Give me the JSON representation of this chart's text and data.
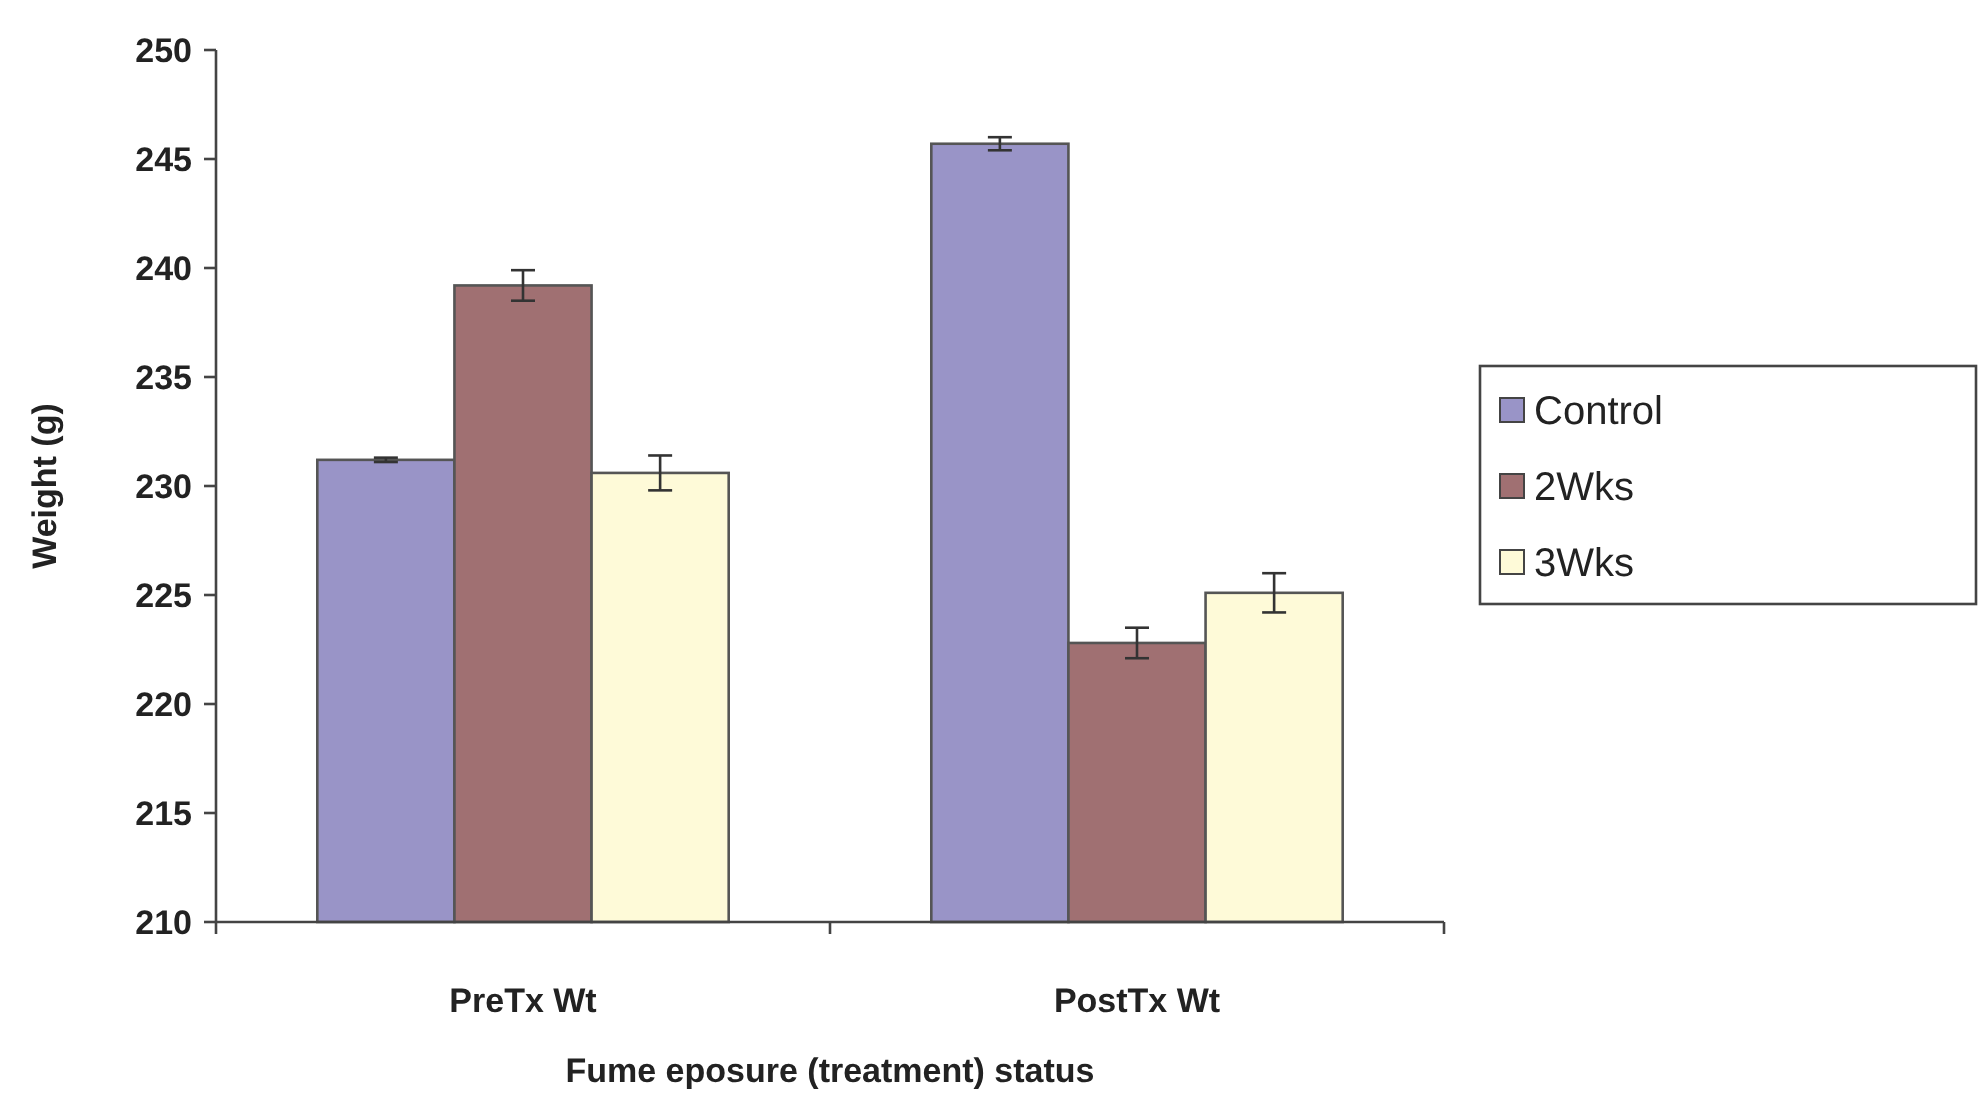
{
  "chart_data": {
    "type": "bar",
    "xlabel": "Fume eposure (treatment) status",
    "ylabel": "Weight (g)",
    "categories": [
      "PreTx Wt",
      "PostTx Wt"
    ],
    "series": [
      {
        "name": "Control",
        "color": "#9994c7",
        "values": [
          231.2,
          245.7
        ],
        "errors": [
          0.1,
          0.3
        ]
      },
      {
        "name": "2Wks",
        "color": "#a07072",
        "values": [
          239.2,
          222.8
        ],
        "errors": [
          0.7,
          0.7
        ]
      },
      {
        "name": "3Wks",
        "color": "#fefad8",
        "values": [
          230.6,
          225.1
        ],
        "errors": [
          0.8,
          0.9
        ]
      }
    ],
    "ylim": [
      210,
      250
    ],
    "yticks": [
      210,
      215,
      220,
      225,
      230,
      235,
      240,
      245,
      250
    ],
    "grid": false,
    "legend": "right"
  }
}
